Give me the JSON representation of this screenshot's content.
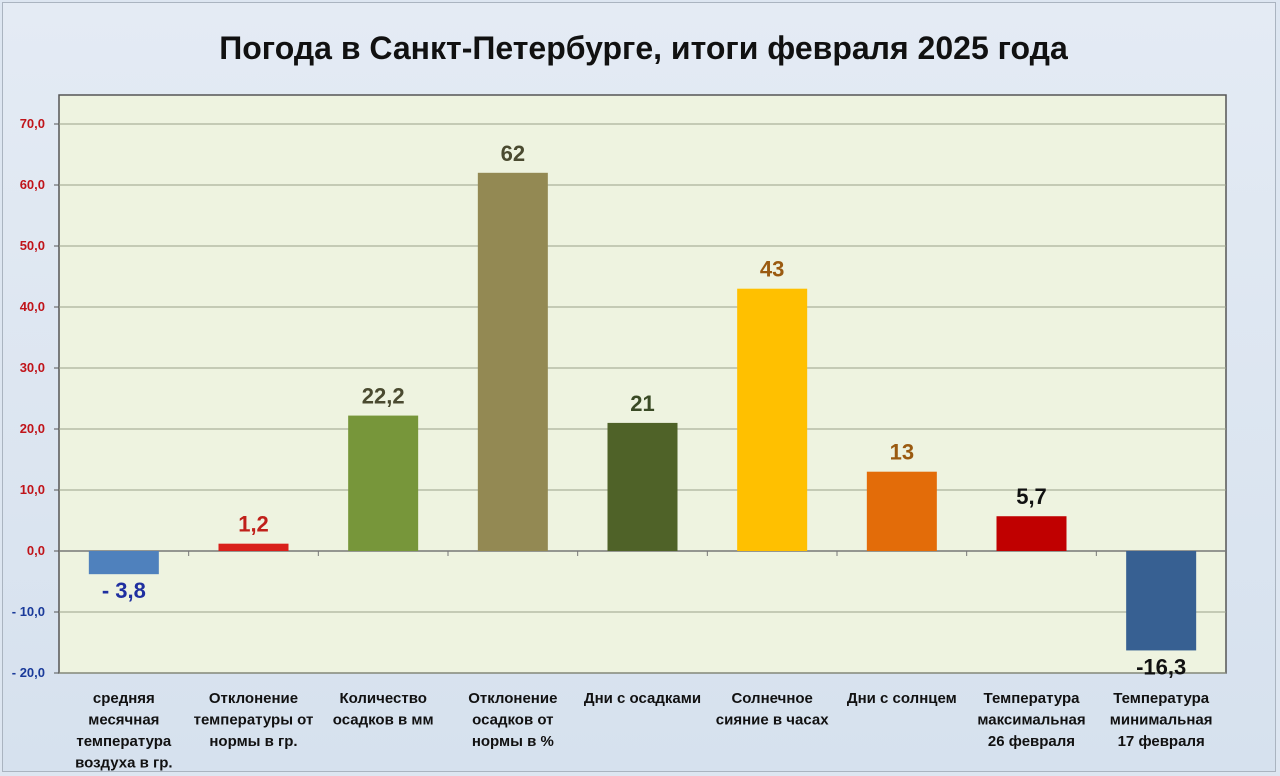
{
  "chart_data": {
    "type": "bar",
    "title": "Погода в Санкт-Петербурге, итоги февраля 2025 года",
    "ylim": [
      -20,
      70
    ],
    "yticks": [
      {
        "value": 70,
        "label": "70,0",
        "color": "#c0141a"
      },
      {
        "value": 60,
        "label": "60,0",
        "color": "#c0141a"
      },
      {
        "value": 50,
        "label": "50,0",
        "color": "#c0141a"
      },
      {
        "value": 40,
        "label": "40,0",
        "color": "#c0141a"
      },
      {
        "value": 30,
        "label": "30,0",
        "color": "#c0141a"
      },
      {
        "value": 20,
        "label": "20,0",
        "color": "#c0141a"
      },
      {
        "value": 10,
        "label": "10,0",
        "color": "#c0141a"
      },
      {
        "value": 0,
        "label": "0,0",
        "color": "#c0141a"
      },
      {
        "value": -10,
        "label": "- 10,0",
        "color": "#1a3a9a"
      },
      {
        "value": -20,
        "label": "- 20,0",
        "color": "#1a3a9a"
      }
    ],
    "grid": true,
    "bars": [
      {
        "category": [
          "средняя",
          "месячная",
          "температура",
          "воздуха в гр."
        ],
        "value": -3.8,
        "label": "- 3,8",
        "color": "#4f81bd",
        "label_color": "#1f2fa0"
      },
      {
        "category": [
          "Отклонение",
          "температуры от",
          "нормы в гр."
        ],
        "value": 1.2,
        "label": "1,2",
        "color": "#d9201a",
        "label_color": "#c0201a"
      },
      {
        "category": [
          "Количество",
          "осадков в мм"
        ],
        "value": 22.2,
        "label": "22,2",
        "color": "#77963a",
        "label_color": "#4a4a30"
      },
      {
        "category": [
          "Отклонение",
          "осадков от",
          "нормы в %"
        ],
        "value": 62,
        "label": "62",
        "color": "#938953",
        "label_color": "#4a4a30"
      },
      {
        "category": [
          "Дни с осадками"
        ],
        "value": 21,
        "label": "21",
        "color": "#4f6228",
        "label_color": "#3a4a25"
      },
      {
        "category": [
          "Солнечное",
          "сияние в часах"
        ],
        "value": 43,
        "label": "43",
        "color": "#ffc000",
        "label_color": "#9a5a10"
      },
      {
        "category": [
          "Дни с солнцем"
        ],
        "value": 13,
        "label": "13",
        "color": "#e36c09",
        "label_color": "#9a5a10"
      },
      {
        "category": [
          "Температура",
          "максимальная",
          "26 февраля"
        ],
        "value": 5.7,
        "label": "5,7",
        "color": "#c00000",
        "label_color": "#111111"
      },
      {
        "category": [
          "Температура",
          "минимальная",
          "17 февраля"
        ],
        "value": -16.3,
        "label": "-16,3",
        "color": "#376092",
        "label_color": "#111111"
      }
    ]
  }
}
